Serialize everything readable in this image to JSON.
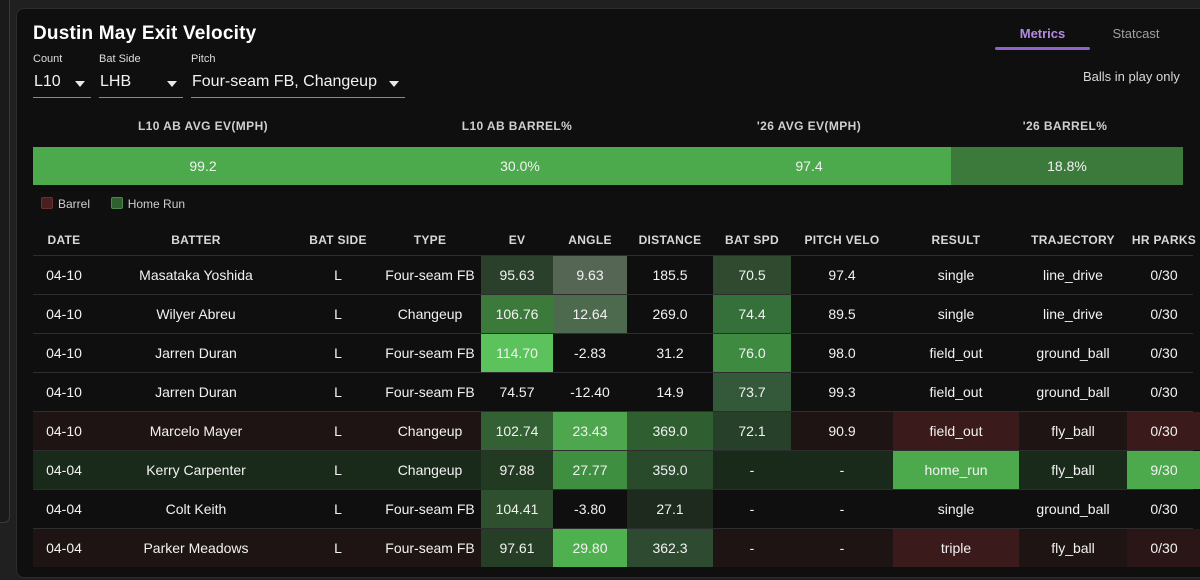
{
  "title": "Dustin May Exit Velocity",
  "tabs": [
    {
      "label": "Metrics",
      "active": true
    },
    {
      "label": "Statcast",
      "active": false
    }
  ],
  "balls_in_play_note": "Balls in play only",
  "filters": {
    "count": {
      "label": "Count",
      "value": "L10"
    },
    "bat_side": {
      "label": "Bat Side",
      "value": "LHB"
    },
    "pitch": {
      "label": "Pitch",
      "value": "Four-seam FB, Changeup"
    }
  },
  "summary": [
    {
      "label": "L10 AB AVG EV(MPH)",
      "value": "99.2"
    },
    {
      "label": "L10 AB BARREL%",
      "value": "30.0%"
    },
    {
      "label": "'26 AVG EV(MPH)",
      "value": "97.4"
    },
    {
      "label": "'26 BARREL%",
      "value": "18.8%"
    }
  ],
  "legend": [
    {
      "label": "Barrel",
      "color": "#4a1f1f"
    },
    {
      "label": "Home Run",
      "color": "#2f5e2f"
    }
  ],
  "columns": [
    "DATE",
    "BATTER",
    "BAT SIDE",
    "TYPE",
    "EV",
    "ANGLE",
    "DISTANCE",
    "BAT SPD",
    "PITCH VELO",
    "RESULT",
    "TRAJECTORY",
    "HR PARKS"
  ],
  "rows": [
    {
      "date": "04-10",
      "batter": "Masataka Yoshida",
      "bat_side": "L",
      "type": "Four-seam FB",
      "ev": "95.63",
      "angle": "9.63",
      "distance": "185.5",
      "bat_spd": "70.5",
      "pitch_velo": "97.4",
      "result": "single",
      "trajectory": "line_drive",
      "hr_parks": "0/30"
    },
    {
      "date": "04-10",
      "batter": "Wilyer Abreu",
      "bat_side": "L",
      "type": "Changeup",
      "ev": "106.76",
      "angle": "12.64",
      "distance": "269.0",
      "bat_spd": "74.4",
      "pitch_velo": "89.5",
      "result": "single",
      "trajectory": "line_drive",
      "hr_parks": "0/30"
    },
    {
      "date": "04-10",
      "batter": "Jarren Duran",
      "bat_side": "L",
      "type": "Four-seam FB",
      "ev": "114.70",
      "angle": "-2.83",
      "distance": "31.2",
      "bat_spd": "76.0",
      "pitch_velo": "98.0",
      "result": "field_out",
      "trajectory": "ground_ball",
      "hr_parks": "0/30"
    },
    {
      "date": "04-10",
      "batter": "Jarren Duran",
      "bat_side": "L",
      "type": "Four-seam FB",
      "ev": "74.57",
      "angle": "-12.40",
      "distance": "14.9",
      "bat_spd": "73.7",
      "pitch_velo": "99.3",
      "result": "field_out",
      "trajectory": "ground_ball",
      "hr_parks": "0/30"
    },
    {
      "date": "04-10",
      "batter": "Marcelo Mayer",
      "bat_side": "L",
      "type": "Changeup",
      "ev": "102.74",
      "angle": "23.43",
      "distance": "369.0",
      "bat_spd": "72.1",
      "pitch_velo": "90.9",
      "result": "field_out",
      "trajectory": "fly_ball",
      "hr_parks": "0/30"
    },
    {
      "date": "04-04",
      "batter": "Kerry Carpenter",
      "bat_side": "L",
      "type": "Changeup",
      "ev": "97.88",
      "angle": "27.77",
      "distance": "359.0",
      "bat_spd": "-",
      "pitch_velo": "-",
      "result": "home_run",
      "trajectory": "fly_ball",
      "hr_parks": "9/30"
    },
    {
      "date": "04-04",
      "batter": "Colt Keith",
      "bat_side": "L",
      "type": "Four-seam FB",
      "ev": "104.41",
      "angle": "-3.80",
      "distance": "27.1",
      "bat_spd": "-",
      "pitch_velo": "-",
      "result": "single",
      "trajectory": "ground_ball",
      "hr_parks": "0/30"
    },
    {
      "date": "04-04",
      "batter": "Parker Meadows",
      "bat_side": "L",
      "type": "Four-seam FB",
      "ev": "97.61",
      "angle": "29.80",
      "distance": "362.3",
      "bat_spd": "-",
      "pitch_velo": "-",
      "result": "triple",
      "trajectory": "fly_ball",
      "hr_parks": "0/30"
    }
  ],
  "colors": {
    "accent": "#8f63c9",
    "summary_green": "#4caa4c",
    "summary_dark_green": "#3b7a3b",
    "barrel_row": "#1f1414",
    "home_run_row": "#1a2a1a"
  }
}
